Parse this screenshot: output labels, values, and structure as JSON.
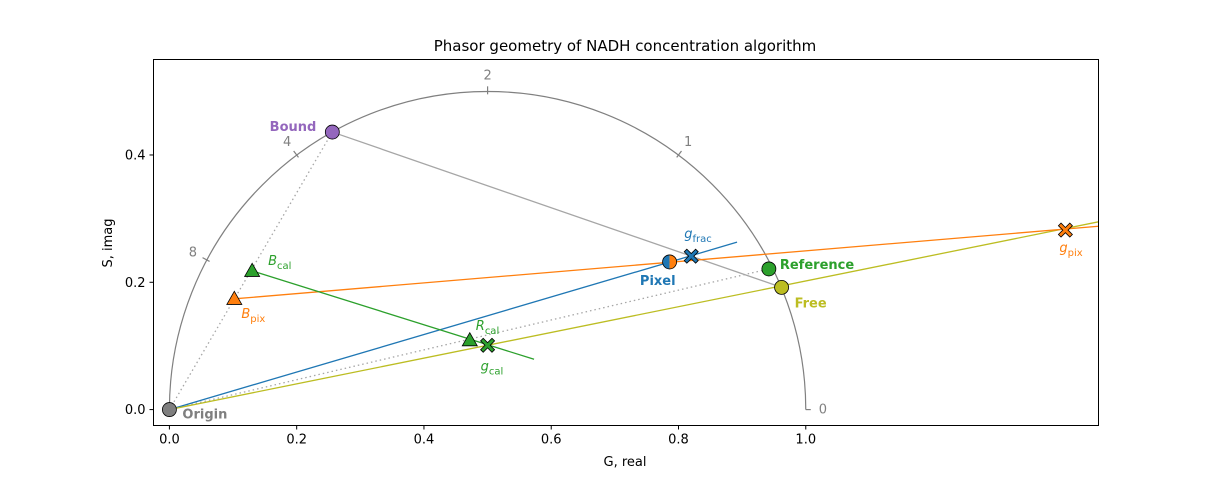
{
  "chart_data": {
    "type": "scatter",
    "title": "Phasor geometry of NADH concentration algorithm",
    "xlabel": "G, real",
    "ylabel": "S, imag",
    "xlim": [
      -0.025,
      1.46
    ],
    "ylim": [
      -0.025,
      0.55
    ],
    "xticks": [
      0.0,
      0.2,
      0.4,
      0.6,
      0.8,
      1.0
    ],
    "xtick_labels": [
      "0.0",
      "0.2",
      "0.4",
      "0.6",
      "0.8",
      "1.0"
    ],
    "yticks": [
      0.0,
      0.2,
      0.4
    ],
    "ytick_labels": [
      "0.0",
      "0.2",
      "0.4"
    ],
    "grid": false,
    "legend": "none",
    "universal_circle": {
      "center": [
        0.5,
        0.0
      ],
      "radius": 0.5,
      "color": "#808080",
      "lifetime_ticks": [
        {
          "label": "0",
          "g": 1.0,
          "s": 0.0
        },
        {
          "label": "1",
          "g": 0.8,
          "s": 0.4
        },
        {
          "label": "2",
          "g": 0.5,
          "s": 0.5
        },
        {
          "label": "4",
          "g": 0.2,
          "s": 0.4
        },
        {
          "label": "8",
          "g": 0.059,
          "s": 0.235
        }
      ]
    },
    "points": [
      {
        "id": "origin",
        "label": "Origin",
        "g": 0.0,
        "s": 0.0,
        "marker": "circle",
        "color": "#7f7f7f"
      },
      {
        "id": "bound",
        "label": "Bound",
        "g": 0.256,
        "s": 0.436,
        "marker": "circle",
        "color": "#9467bd"
      },
      {
        "id": "free",
        "label": "Free",
        "g": 0.962,
        "s": 0.192,
        "marker": "circle",
        "color": "#bcbd22"
      },
      {
        "id": "reference",
        "label": "Reference",
        "g": 0.942,
        "s": 0.221,
        "marker": "circle",
        "color": "#2ca02c"
      },
      {
        "id": "pixel",
        "label": "Pixel",
        "g": 0.786,
        "s": 0.232,
        "marker": "half-circle",
        "color": "#1f77b4",
        "color2": "#ff7f0e"
      },
      {
        "id": "g_frac",
        "label": "g",
        "sub": "frac",
        "g": 0.82,
        "s": 0.241,
        "marker": "x",
        "color": "#1f77b4"
      },
      {
        "id": "g_pix",
        "label": "g",
        "sub": "pix",
        "g": 1.408,
        "s": 0.282,
        "marker": "x",
        "color": "#ff7f0e"
      },
      {
        "id": "B_pix",
        "label": "B",
        "sub": "pix",
        "g": 0.102,
        "s": 0.174,
        "marker": "triangle",
        "color": "#ff7f0e"
      },
      {
        "id": "B_cal",
        "label": "B",
        "sub": "cal",
        "g": 0.13,
        "s": 0.218,
        "marker": "triangle",
        "color": "#2ca02c"
      },
      {
        "id": "R_cal",
        "label": "R",
        "sub": "cal",
        "g": 0.472,
        "s": 0.109,
        "marker": "triangle",
        "color": "#2ca02c"
      },
      {
        "id": "g_cal",
        "label": "g",
        "sub": "cal",
        "g": 0.5,
        "s": 0.101,
        "marker": "x",
        "color": "#2ca02c"
      }
    ],
    "lines": [
      {
        "name": "bound-free",
        "from": [
          0.256,
          0.436
        ],
        "to": [
          0.962,
          0.192
        ],
        "color": "#a6a6a6",
        "style": "solid"
      },
      {
        "name": "origin-bound",
        "from": [
          0.0,
          0.0
        ],
        "to": [
          0.256,
          0.436
        ],
        "color": "#a6a6a6",
        "style": "dotted"
      },
      {
        "name": "origin-reference",
        "from": [
          0.0,
          0.0
        ],
        "to": [
          0.942,
          0.221
        ],
        "color": "#a6a6a6",
        "style": "dotted"
      },
      {
        "name": "origin-gfrac",
        "from": [
          0.0,
          0.0
        ],
        "to": [
          0.892,
          0.263
        ],
        "color": "#1f77b4",
        "style": "solid"
      },
      {
        "name": "origin-free",
        "from": [
          0.0,
          0.0
        ],
        "to": [
          1.46,
          0.295
        ],
        "color": "#bcbd22",
        "style": "solid"
      },
      {
        "name": "Bpix-gpix",
        "from": [
          0.102,
          0.174
        ],
        "to": [
          1.46,
          0.288
        ],
        "color": "#ff7f0e",
        "style": "solid"
      },
      {
        "name": "Bcal-gcal",
        "from": [
          0.13,
          0.218
        ],
        "to": [
          0.573,
          0.079
        ],
        "color": "#2ca02c",
        "style": "solid"
      }
    ]
  }
}
